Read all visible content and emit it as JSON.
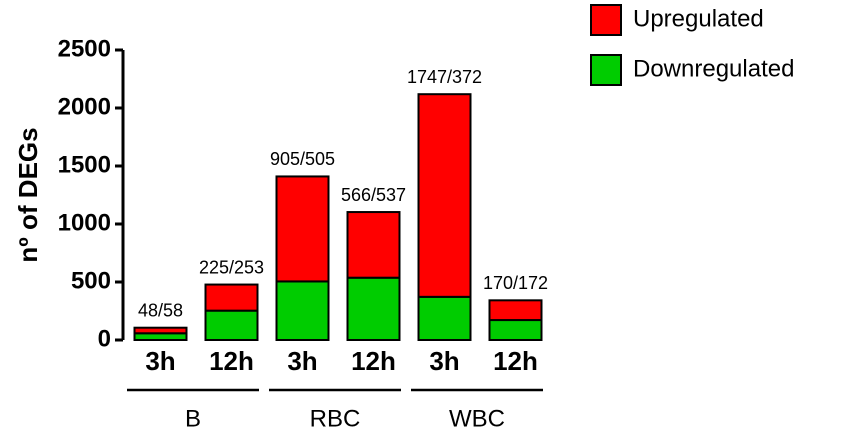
{
  "chart_data": {
    "type": "stacked_bar",
    "y_label": "nº of DEGs",
    "categories": [
      "3h",
      "12h",
      "3h",
      "12h",
      "3h",
      "12h"
    ],
    "groups": [
      {
        "name": "B",
        "size": 2
      },
      {
        "name": "RBC",
        "size": 2
      },
      {
        "name": "WBC",
        "size": 2
      }
    ],
    "series": [
      {
        "name": "Downregulated",
        "color": "#00cc00",
        "values": [
          58,
          253,
          505,
          537,
          372,
          172
        ]
      },
      {
        "name": "Upregulated",
        "color": "#ff0000",
        "values": [
          48,
          225,
          905,
          566,
          1747,
          170
        ]
      }
    ],
    "bar_labels": [
      "48/58",
      "225/253",
      "905/505",
      "566/537",
      "1747/372",
      "170/172"
    ],
    "ylim": [
      0,
      2500
    ],
    "yticks": [
      0,
      500,
      1000,
      1500,
      2000,
      2500
    ],
    "legend": "top-right"
  }
}
